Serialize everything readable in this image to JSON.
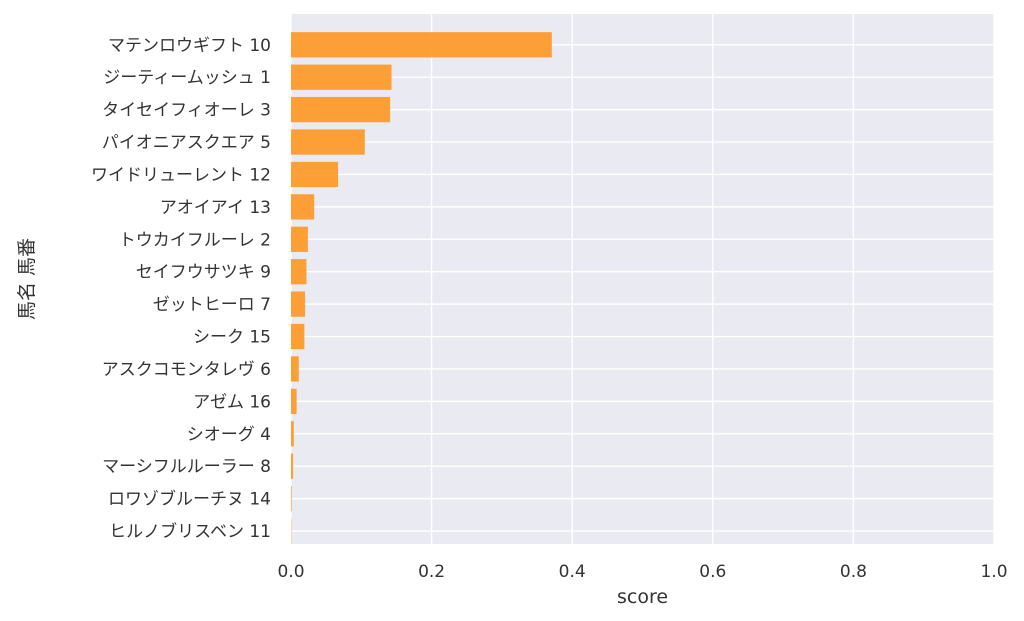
{
  "chart_data": {
    "type": "bar",
    "orientation": "horizontal",
    "categories": [
      "マテンロウギフト 10",
      "ジーティームッシュ 1",
      "タイセイフィオーレ 3",
      "パイオニアスクエア 5",
      "ワイドリューレント 12",
      "アオイアイ 13",
      "トウカイフルーレ 2",
      "セイフウサツキ 9",
      "ゼットヒーロ 7",
      "シーク 15",
      "アスクコモンタレヴ 6",
      "アゼム 16",
      "シオーグ 4",
      "マーシフルルーラー 8",
      "ロワゾブルーチヌ 14",
      "ヒルノブリスベン 11"
    ],
    "values": [
      0.371,
      0.143,
      0.141,
      0.105,
      0.067,
      0.033,
      0.024,
      0.022,
      0.02,
      0.019,
      0.011,
      0.008,
      0.004,
      0.003,
      0.001,
      0.0005
    ],
    "xlabel": "score",
    "ylabel": "馬名 馬番",
    "xlim": [
      0.0,
      1.0
    ],
    "xticks": [
      "0.0",
      "0.2",
      "0.4",
      "0.6",
      "0.8",
      "1.0"
    ],
    "grid": true,
    "colors": {
      "bar": "#fd9b2c",
      "plot_background": "#eaeaf2",
      "grid": "#ffffff",
      "text": "#333333"
    }
  }
}
